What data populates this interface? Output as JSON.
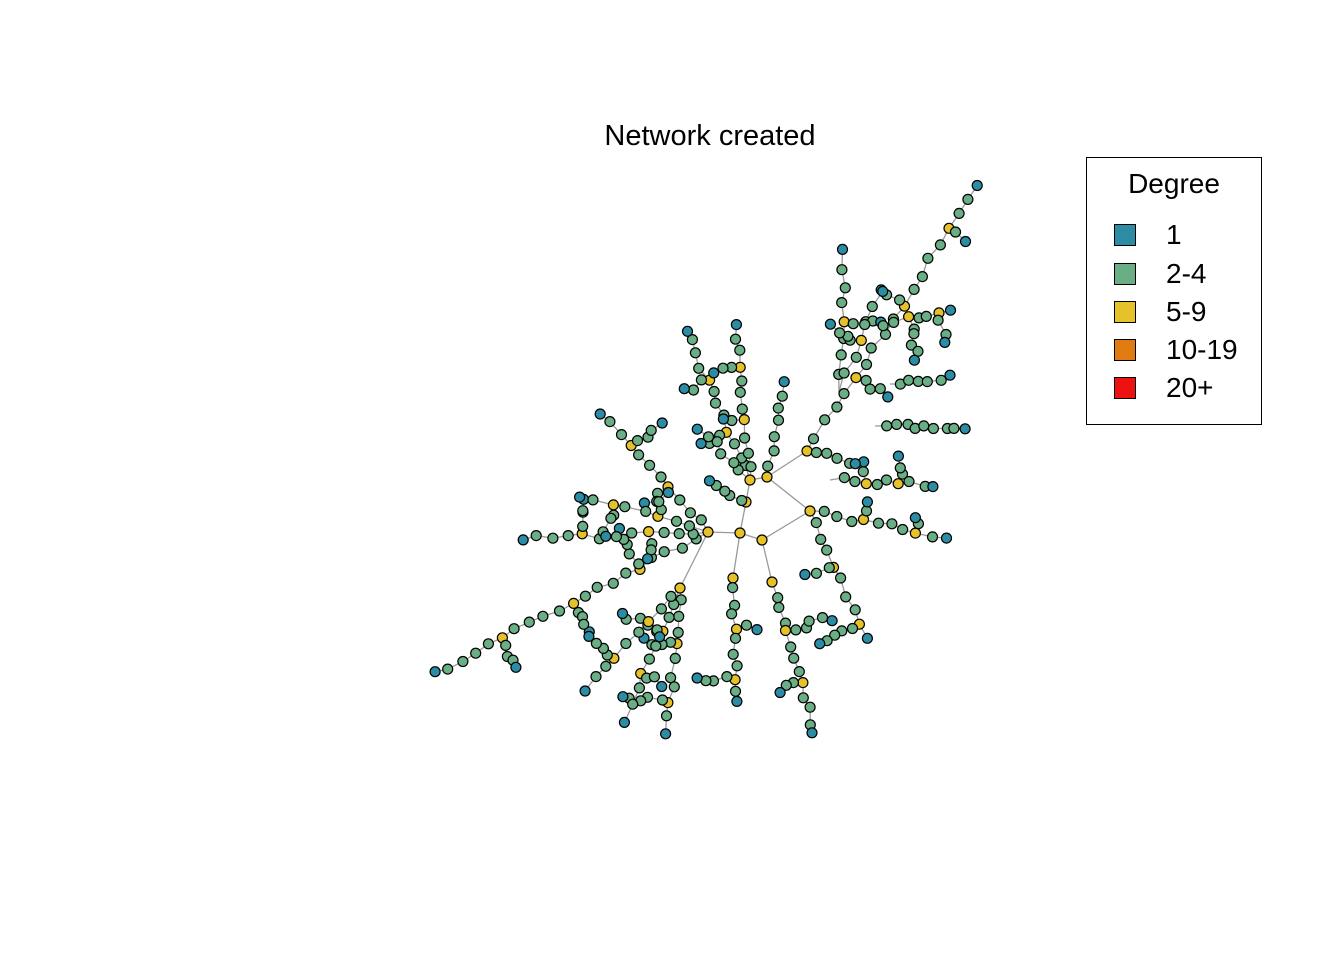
{
  "title": "Network created",
  "legend": {
    "title": "Degree",
    "items": [
      {
        "label": "1",
        "color": "#2B8CA3"
      },
      {
        "label": "2-4",
        "color": "#6AAE85"
      },
      {
        "label": "5-9",
        "color": "#E6C22A"
      },
      {
        "label": "10-19",
        "color": "#E07B12"
      },
      {
        "label": "20+",
        "color": "#EE1111"
      }
    ]
  },
  "styles": {
    "edge_color": "#999999",
    "node_outline": "#000000"
  }
}
